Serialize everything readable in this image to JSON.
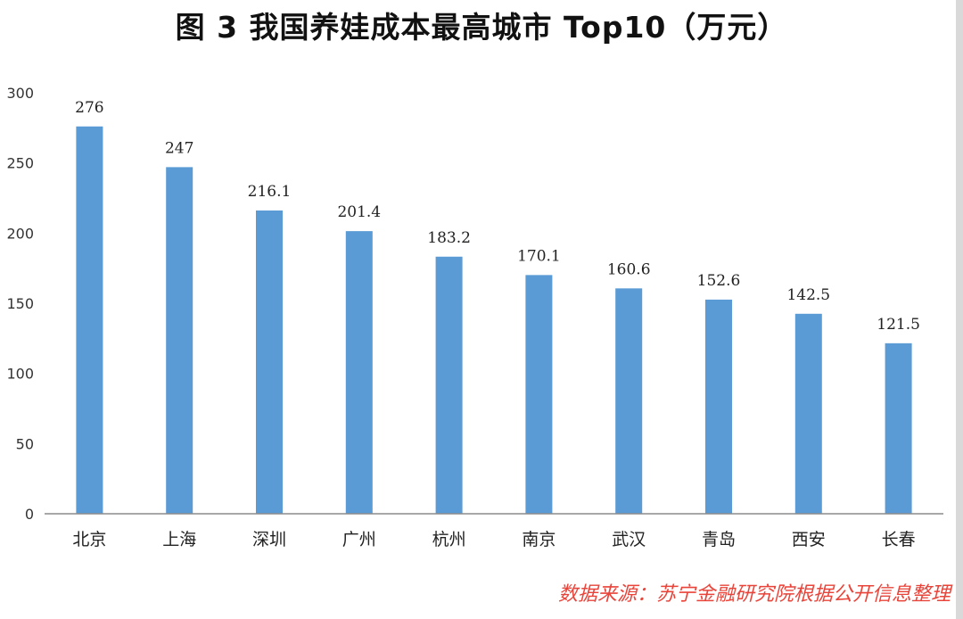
{
  "title": "图 3   我国养娃成本最高城市 Top10（万元）",
  "source": "数据来源：苏宁金融研究院根据公开信息整理",
  "colors": {
    "bar": "#5b9bd5",
    "axis": "#8c8c8c",
    "source": "#e8443a"
  },
  "chart_data": {
    "type": "bar",
    "title": "我国养娃成本最高城市 Top10（万元）",
    "xlabel": "",
    "ylabel": "",
    "ylim": [
      0,
      300
    ],
    "yticks": [
      0,
      50,
      100,
      150,
      200,
      250,
      300
    ],
    "grid": false,
    "categories": [
      "北京",
      "上海",
      "深圳",
      "广州",
      "杭州",
      "南京",
      "武汉",
      "青岛",
      "西安",
      "长春"
    ],
    "values": [
      276,
      247,
      216.1,
      201.4,
      183.2,
      170.1,
      160.6,
      152.6,
      142.5,
      121.5
    ],
    "value_labels": [
      "276",
      "247",
      "216.1",
      "201.4",
      "183.2",
      "170.1",
      "160.6",
      "152.6",
      "142.5",
      "121.5"
    ]
  }
}
